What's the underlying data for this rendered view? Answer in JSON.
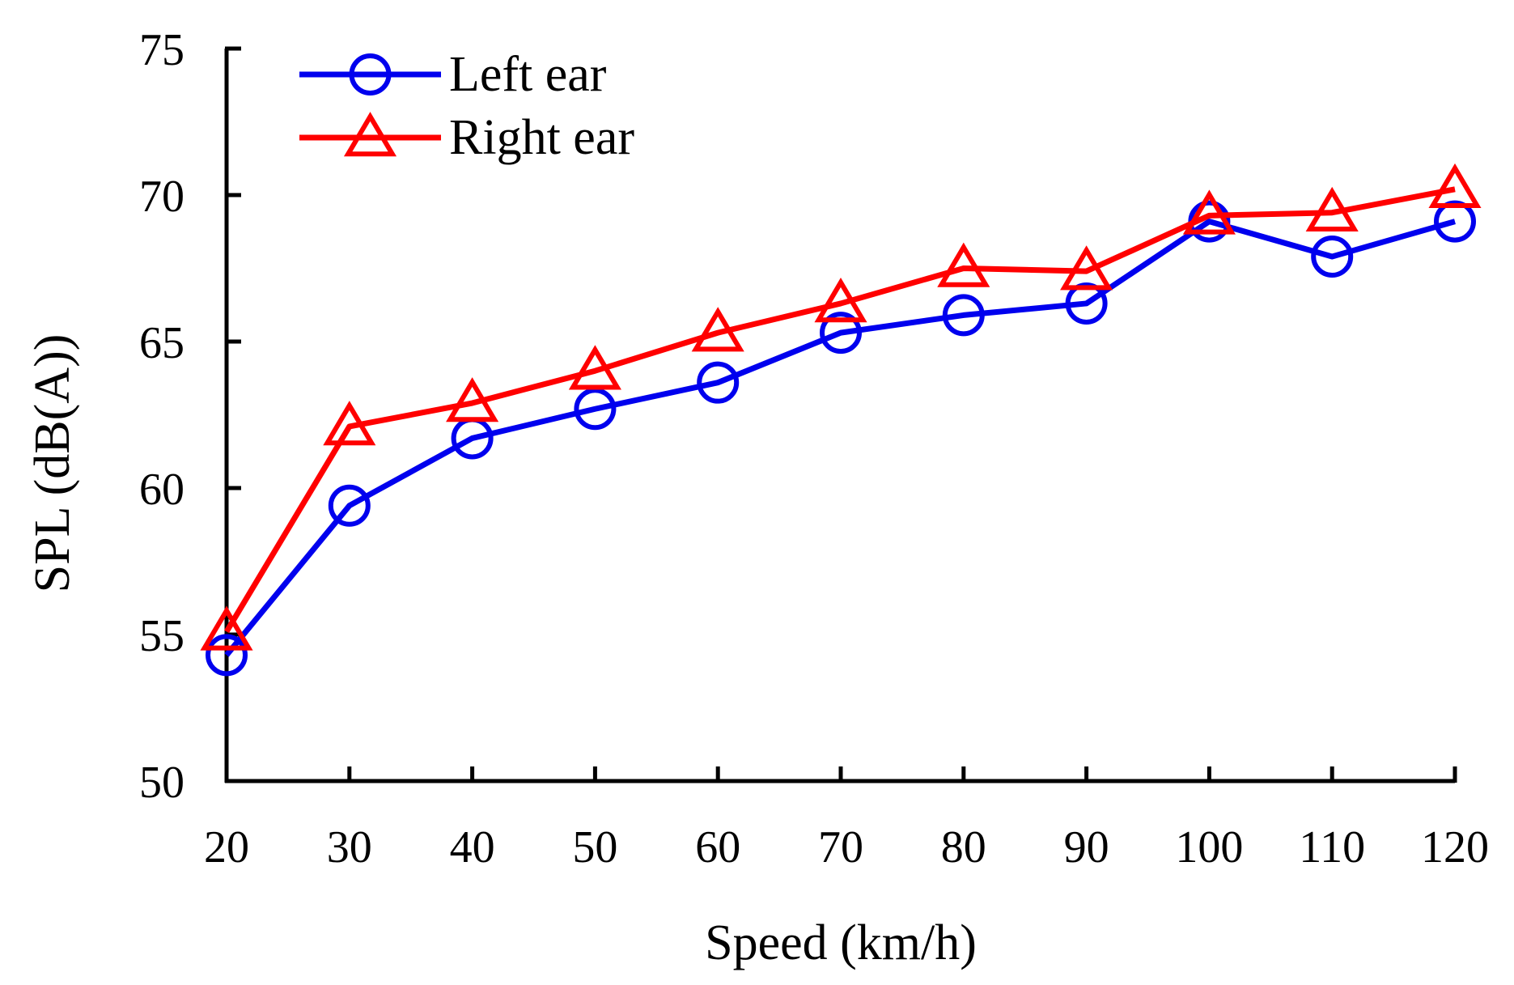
{
  "chart_data": {
    "type": "line",
    "title": "",
    "xlabel": "Speed (km/h)",
    "ylabel": "SPL (dB(A))",
    "x": [
      20,
      30,
      40,
      50,
      60,
      70,
      80,
      90,
      100,
      110,
      120
    ],
    "xticks": [
      "20",
      "30",
      "40",
      "50",
      "60",
      "70",
      "80",
      "90",
      "100",
      "110",
      "120"
    ],
    "yticks": [
      "50",
      "55",
      "60",
      "65",
      "70",
      "75"
    ],
    "ylim": [
      50,
      75
    ],
    "grid": false,
    "legend_position": "top-left",
    "series": [
      {
        "name": "Left ear",
        "color": "#0000ee",
        "marker": "circle",
        "values": [
          54.3,
          59.4,
          61.7,
          62.7,
          63.6,
          65.3,
          65.9,
          66.3,
          69.1,
          67.9,
          69.1
        ]
      },
      {
        "name": "Right ear",
        "color": "#ff0000",
        "marker": "triangle",
        "values": [
          55.1,
          62.1,
          62.9,
          64.0,
          65.3,
          66.3,
          67.5,
          67.4,
          69.3,
          69.4,
          70.2
        ]
      }
    ]
  }
}
